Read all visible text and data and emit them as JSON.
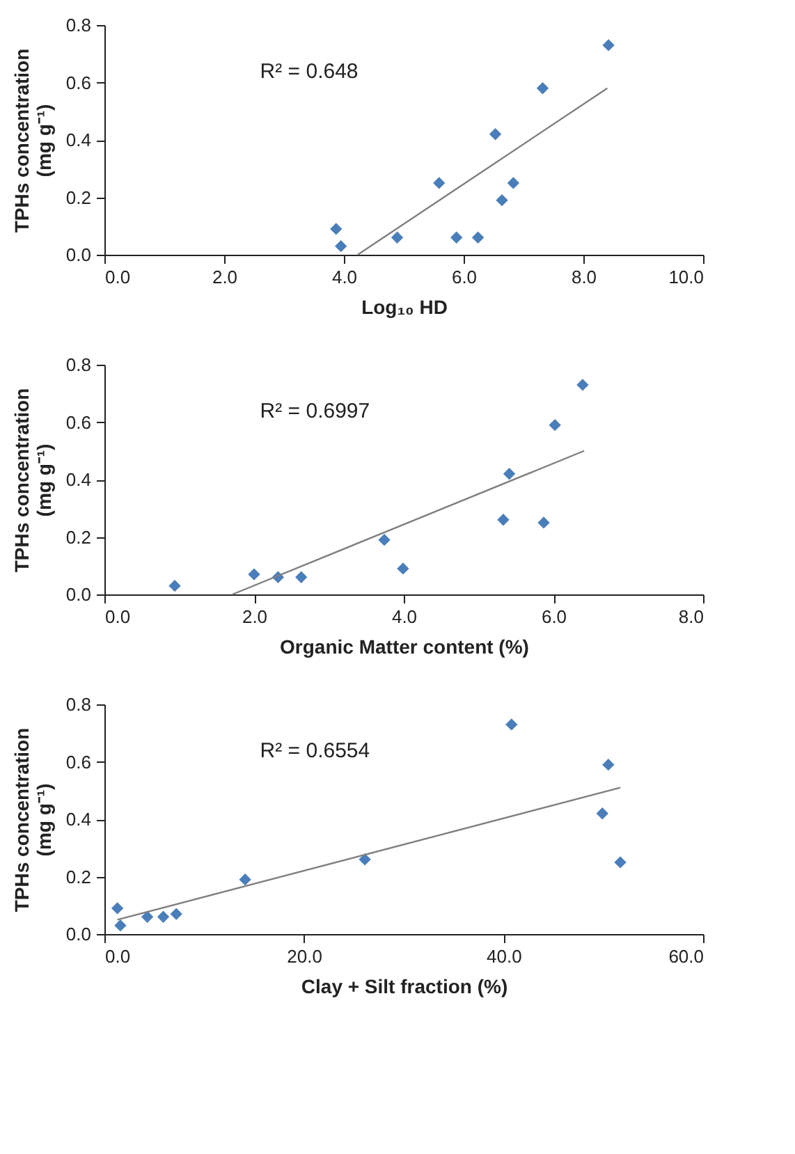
{
  "chart_data": [
    {
      "type": "scatter",
      "xlabel": "Log₁₀ HD",
      "ylabel": "TPHs concentration\n(mg g⁻¹)",
      "annotations": [
        "R² = 0.648"
      ],
      "grid": false,
      "xlim": [
        0,
        10
      ],
      "xticks": [
        {
          "value": 0,
          "label": "0.0"
        },
        {
          "value": 2,
          "label": "2.0"
        },
        {
          "value": 4,
          "label": "4.0"
        },
        {
          "value": 6,
          "label": "6.0"
        },
        {
          "value": 8,
          "label": "8.0"
        },
        {
          "value": 10,
          "label": "10.0"
        }
      ],
      "ylim": [
        0,
        0.8
      ],
      "yticks": [
        {
          "value": 0,
          "label": "0.0"
        },
        {
          "value": 0.2,
          "label": "0.2"
        },
        {
          "value": 0.4,
          "label": "0.4"
        },
        {
          "value": 0.6,
          "label": "0.6"
        },
        {
          "value": 0.8,
          "label": "0.8"
        }
      ],
      "series": [
        {
          "marker": "diamond",
          "color": "#4a7ebb",
          "x": [
            3.87,
            3.95,
            4.89,
            5.59,
            5.88,
            6.24,
            6.53,
            6.64,
            6.83,
            7.32,
            8.42
          ],
          "values": [
            0.09,
            0.03,
            0.06,
            0.25,
            0.06,
            0.06,
            0.42,
            0.19,
            0.25,
            0.58,
            0.73
          ]
        },
        {
          "type": "line",
          "color": "#7f7f7f",
          "x": [
            4.23,
            8.4
          ],
          "values": [
            0.0,
            0.58
          ]
        }
      ]
    },
    {
      "type": "scatter",
      "xlabel": "Organic Matter content (%)",
      "ylabel": "TPHs concentration\n(mg g⁻¹)",
      "annotations": [
        "R² = 0.6997"
      ],
      "grid": false,
      "xlim": [
        0,
        8
      ],
      "xticks": [
        {
          "value": 0,
          "label": "0.0"
        },
        {
          "value": 2,
          "label": "2.0"
        },
        {
          "value": 4,
          "label": "4.0"
        },
        {
          "value": 6,
          "label": "6.0"
        },
        {
          "value": 8,
          "label": "8.0"
        }
      ],
      "ylim": [
        0,
        0.8
      ],
      "yticks": [
        {
          "value": 0,
          "label": "0.0"
        },
        {
          "value": 0.2,
          "label": "0.2"
        },
        {
          "value": 0.4,
          "label": "0.4"
        },
        {
          "value": 0.6,
          "label": "0.6"
        },
        {
          "value": 0.8,
          "label": "0.8"
        }
      ],
      "series": [
        {
          "marker": "diamond",
          "color": "#4a7ebb",
          "x": [
            0.94,
            2.0,
            2.32,
            2.63,
            3.74,
            3.99,
            5.33,
            5.41,
            5.87,
            6.02,
            6.39
          ],
          "values": [
            0.03,
            0.07,
            0.06,
            0.06,
            0.19,
            0.09,
            0.26,
            0.42,
            0.25,
            0.59,
            0.73
          ]
        },
        {
          "type": "line",
          "color": "#7f7f7f",
          "x": [
            1.71,
            6.41
          ],
          "values": [
            0.0,
            0.5
          ]
        }
      ]
    },
    {
      "type": "scatter",
      "xlabel": "Clay + Silt fraction (%)",
      "ylabel": "TPHs concentration\n(mg g⁻¹)",
      "annotations": [
        "R² = 0.6554"
      ],
      "grid": false,
      "xlim": [
        0,
        60
      ],
      "xticks": [
        {
          "value": 0,
          "label": "0.0"
        },
        {
          "value": 20,
          "label": "20.0"
        },
        {
          "value": 40,
          "label": "40.0"
        },
        {
          "value": 60,
          "label": "60.0"
        }
      ],
      "ylim": [
        0,
        0.8
      ],
      "yticks": [
        {
          "value": 0,
          "label": "0.0"
        },
        {
          "value": 0.2,
          "label": "0.2"
        },
        {
          "value": 0.4,
          "label": "0.4"
        },
        {
          "value": 0.6,
          "label": "0.6"
        },
        {
          "value": 0.8,
          "label": "0.8"
        }
      ],
      "series": [
        {
          "marker": "diamond",
          "color": "#4a7ebb",
          "x": [
            1.3,
            1.6,
            4.3,
            5.9,
            7.2,
            14.1,
            26.1,
            40.8,
            49.9,
            50.5,
            51.7
          ],
          "values": [
            0.09,
            0.03,
            0.06,
            0.06,
            0.07,
            0.19,
            0.26,
            0.73,
            0.42,
            0.59,
            0.25
          ]
        },
        {
          "type": "line",
          "color": "#7f7f7f",
          "x": [
            1.3,
            51.7
          ],
          "values": [
            0.05,
            0.51
          ]
        }
      ]
    }
  ]
}
